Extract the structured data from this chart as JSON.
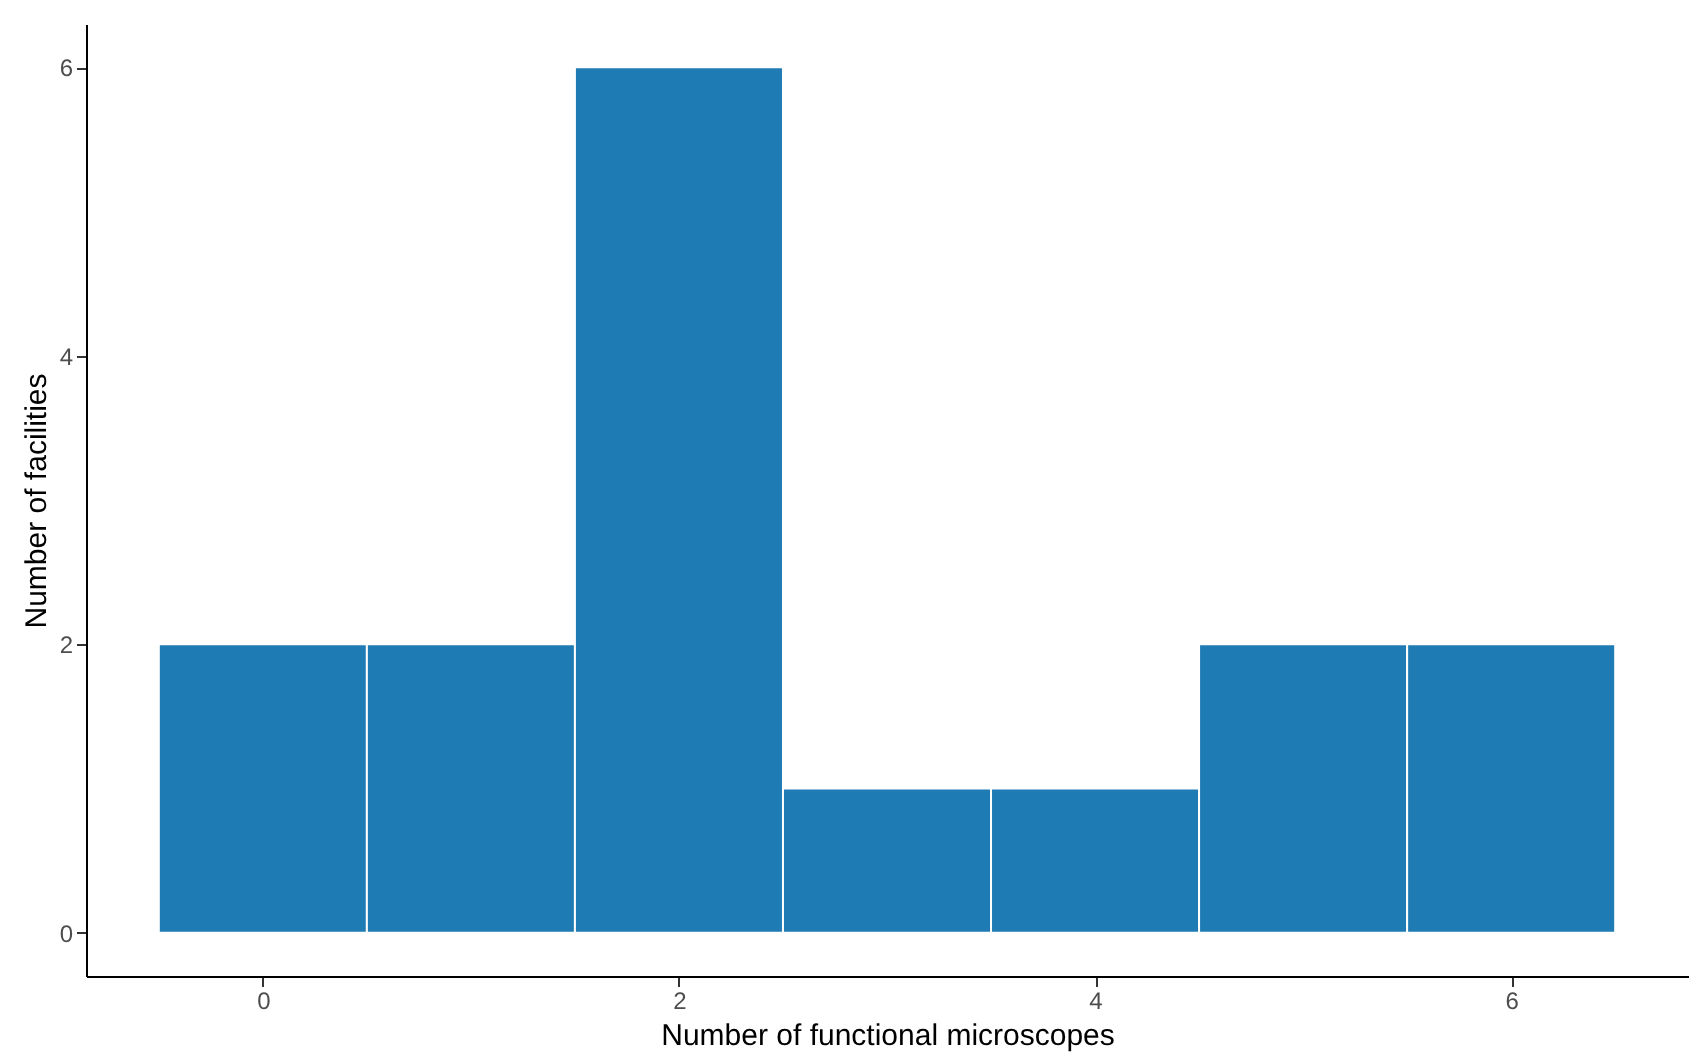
{
  "chart_data": {
    "type": "histogram",
    "xlabel": "Number of functional microscopes",
    "ylabel": "Number of facilities",
    "bins": [
      -0.5,
      0.5,
      1.5,
      2.5,
      3.5,
      4.5,
      5.5,
      6.5
    ],
    "values": [
      2,
      2,
      6,
      1,
      1,
      2,
      2
    ],
    "color": "#1f7bb4",
    "xlim": [
      -0.85,
      6.85
    ],
    "xticks": [
      0,
      2,
      4,
      6
    ],
    "ylim": [
      -0.3,
      6.3
    ],
    "yticks": [
      0,
      2,
      4,
      6
    ],
    "grid": false
  }
}
